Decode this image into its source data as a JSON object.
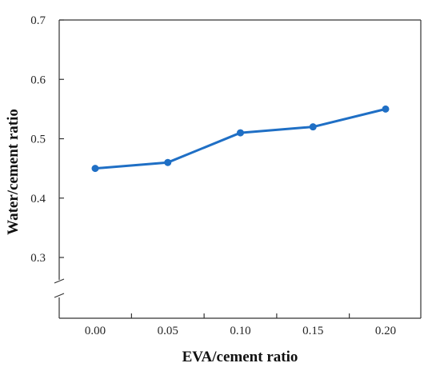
{
  "chart_data": {
    "type": "line",
    "xlabel": "EVA/cement ratio",
    "ylabel": "Water/cement ratio",
    "x_ticks": [
      "0.00",
      "0.05",
      "0.10",
      "0.15",
      "0.20"
    ],
    "y_ticks": [
      "0.3",
      "0.4",
      "0.5",
      "0.6",
      "0.7"
    ],
    "y_axis_break": true,
    "ylim": [
      0.3,
      0.7
    ],
    "grid": false,
    "series": [
      {
        "x": [
          0.0,
          0.05,
          0.1,
          0.15,
          0.2
        ],
        "y": [
          0.45,
          0.46,
          0.51,
          0.52,
          0.55
        ],
        "color": "#1F6FC5",
        "marker": "circle"
      }
    ]
  }
}
